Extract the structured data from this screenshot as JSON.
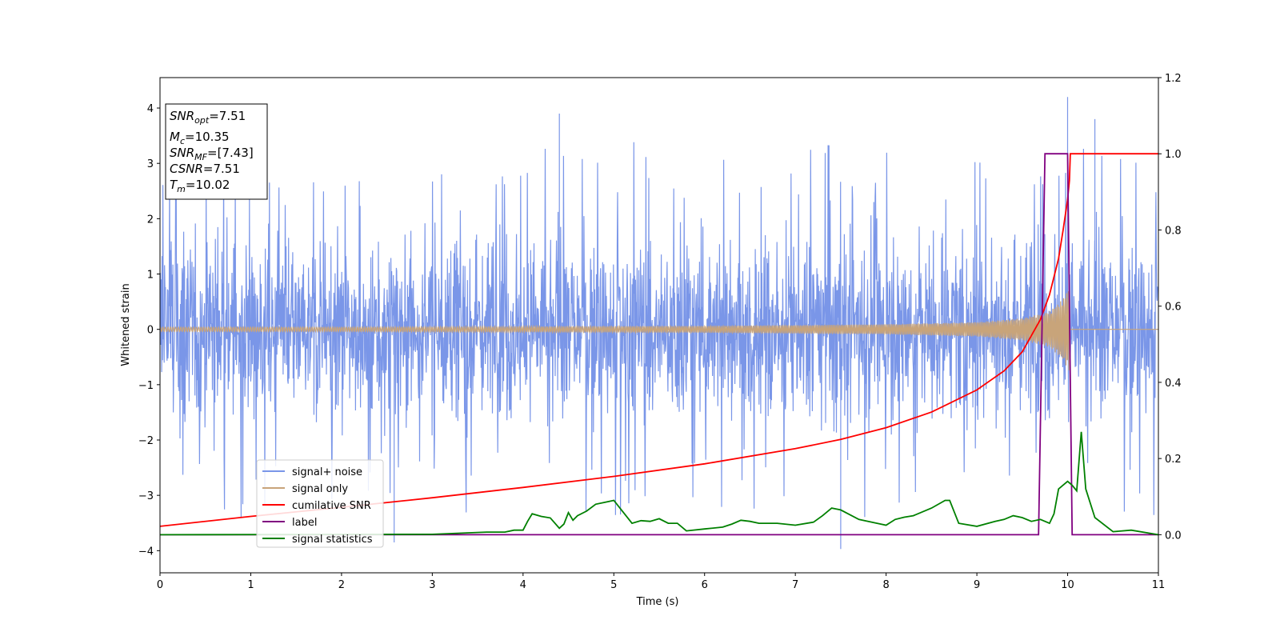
{
  "chart_data": {
    "type": "line",
    "xlabel": "Time (s)",
    "ylabel": "Whitened strain",
    "xlim": [
      0,
      11
    ],
    "ylim_left": [
      -4.4,
      4.55
    ],
    "ylim_right": [
      -0.1,
      1.2
    ],
    "x_ticks": [
      "0",
      "1",
      "2",
      "3",
      "4",
      "5",
      "6",
      "7",
      "8",
      "9",
      "10",
      "11"
    ],
    "y_left_ticks": [
      "−4",
      "−3",
      "−2",
      "−1",
      "0",
      "1",
      "2",
      "3",
      "4"
    ],
    "y_right_ticks": [
      "0.0",
      "0.2",
      "0.4",
      "0.6",
      "0.8",
      "1.0",
      "1.2"
    ],
    "legend_position": "lower-left",
    "info_box": {
      "position": "top-left",
      "lines": [
        {
          "var": "SNR",
          "sub": "opt",
          "value": "=7.51"
        },
        {
          "var": "M",
          "sub": "c",
          "value": "=10.35"
        },
        {
          "var": "SNR",
          "sub": "MF",
          "value": "=[7.43]"
        },
        {
          "var": "CSNR",
          "sub": "",
          "value": "=7.51"
        },
        {
          "var": "T",
          "sub": "m",
          "value": "=10.02"
        }
      ]
    },
    "series": [
      {
        "name": "signal+ noise",
        "axis": "left",
        "color": "#7a96e8",
        "style": "noise",
        "typical_amplitude": 1.55,
        "spike_max": 4.2,
        "spike_min": -3.97,
        "end_time": 11.0
      },
      {
        "name": "signal only",
        "axis": "left",
        "color": "#c8a47a",
        "style": "chirp",
        "merger_time": 10.02,
        "envelope": {
          "t": [
            0,
            2,
            4,
            6,
            8,
            9,
            9.5,
            9.8,
            9.95,
            10.0,
            10.02
          ],
          "a": [
            0.04,
            0.04,
            0.05,
            0.06,
            0.09,
            0.13,
            0.2,
            0.32,
            0.55,
            0.72,
            0.75
          ]
        }
      },
      {
        "name": "cumilative SNR",
        "axis": "right",
        "color": "#ff0000",
        "x": [
          0,
          1,
          2,
          3,
          4,
          5,
          6,
          7,
          7.5,
          8,
          8.5,
          9,
          9.3,
          9.5,
          9.7,
          9.8,
          9.9,
          9.95,
          10.0,
          10.02,
          10.03,
          11
        ],
        "y": [
          0.022,
          0.048,
          0.072,
          0.097,
          0.124,
          0.153,
          0.186,
          0.226,
          0.25,
          0.281,
          0.322,
          0.38,
          0.43,
          0.48,
          0.565,
          0.63,
          0.725,
          0.8,
          0.88,
          0.93,
          1.0,
          1.0
        ]
      },
      {
        "name": "label",
        "axis": "right",
        "color": "#800080",
        "x": [
          0,
          9.68,
          9.75,
          10.0,
          10.05,
          11
        ],
        "y": [
          0.0,
          0.0,
          1.0,
          1.0,
          0.0,
          0.0
        ]
      },
      {
        "name": "signal statistics",
        "axis": "right",
        "color": "#008000",
        "x": [
          0,
          3.0,
          3.3,
          3.6,
          3.8,
          3.9,
          4.0,
          4.05,
          4.1,
          4.2,
          4.3,
          4.4,
          4.45,
          4.5,
          4.55,
          4.6,
          4.7,
          4.8,
          5.0,
          5.2,
          5.3,
          5.4,
          5.5,
          5.6,
          5.7,
          5.8,
          6.0,
          6.2,
          6.3,
          6.4,
          6.5,
          6.6,
          6.8,
          7.0,
          7.2,
          7.3,
          7.4,
          7.5,
          7.7,
          7.9,
          8.0,
          8.1,
          8.2,
          8.3,
          8.5,
          8.65,
          8.7,
          8.8,
          9.0,
          9.2,
          9.3,
          9.4,
          9.5,
          9.6,
          9.7,
          9.8,
          9.85,
          9.9,
          10.0,
          10.05,
          10.1,
          10.15,
          10.2,
          10.3,
          10.5,
          10.7,
          11.0
        ],
        "y": [
          0.0,
          0.001,
          0.004,
          0.007,
          0.007,
          0.012,
          0.012,
          0.035,
          0.055,
          0.048,
          0.044,
          0.017,
          0.028,
          0.058,
          0.038,
          0.05,
          0.062,
          0.08,
          0.09,
          0.03,
          0.037,
          0.035,
          0.042,
          0.03,
          0.03,
          0.01,
          0.015,
          0.02,
          0.028,
          0.038,
          0.035,
          0.03,
          0.03,
          0.025,
          0.033,
          0.05,
          0.07,
          0.065,
          0.04,
          0.03,
          0.025,
          0.04,
          0.046,
          0.05,
          0.07,
          0.09,
          0.09,
          0.03,
          0.022,
          0.035,
          0.04,
          0.05,
          0.045,
          0.035,
          0.04,
          0.03,
          0.055,
          0.12,
          0.14,
          0.13,
          0.115,
          0.27,
          0.12,
          0.045,
          0.008,
          0.012,
          0.0
        ]
      }
    ]
  }
}
